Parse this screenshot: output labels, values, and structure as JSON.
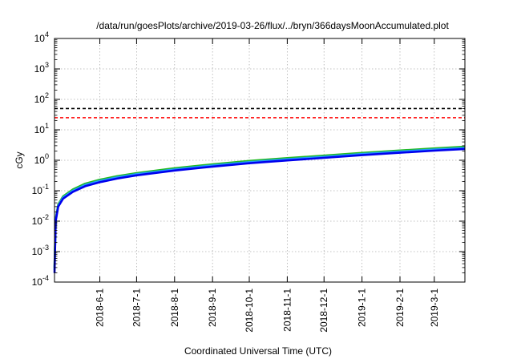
{
  "chart_data": {
    "type": "line",
    "title": "/data/run/goesPlots/archive/2019-03-26/flux/../bryn/366daysMoonAccumulated.plot",
    "xlabel": "Coordinated Universal Time (UTC)",
    "ylabel": "cGy",
    "yscale": "log",
    "ylim": [
      0.0001,
      10000
    ],
    "xlim": [
      "2018-04-25",
      "2019-03-26"
    ],
    "grid": true,
    "y_ticks": [
      {
        "value": 0.0001,
        "base": "10",
        "exp": "-4"
      },
      {
        "value": 0.001,
        "base": "10",
        "exp": "-3"
      },
      {
        "value": 0.01,
        "base": "10",
        "exp": "-2"
      },
      {
        "value": 0.1,
        "base": "10",
        "exp": "-1"
      },
      {
        "value": 1,
        "base": "10",
        "exp": "0"
      },
      {
        "value": 10,
        "base": "10",
        "exp": "1"
      },
      {
        "value": 100,
        "base": "10",
        "exp": "2"
      },
      {
        "value": 1000,
        "base": "10",
        "exp": "3"
      },
      {
        "value": 10000,
        "base": "10",
        "exp": "4"
      }
    ],
    "x_ticks": [
      {
        "date": "2018-06-01",
        "label": "2018-6-1"
      },
      {
        "date": "2018-07-01",
        "label": "2018-7-1"
      },
      {
        "date": "2018-08-01",
        "label": "2018-8-1"
      },
      {
        "date": "2018-09-01",
        "label": "2018-9-1"
      },
      {
        "date": "2018-10-01",
        "label": "2018-10-1"
      },
      {
        "date": "2018-11-01",
        "label": "2018-11-1"
      },
      {
        "date": "2018-12-01",
        "label": "2018-12-1"
      },
      {
        "date": "2019-01-01",
        "label": "2019-1-1"
      },
      {
        "date": "2019-02-01",
        "label": "2019-2-1"
      },
      {
        "date": "2019-03-01",
        "label": "2019-3-1"
      }
    ],
    "reference_lines": [
      {
        "value": 50,
        "color": "#000000",
        "style": "dashed"
      },
      {
        "value": 25,
        "color": "#ff0000",
        "style": "dashed"
      }
    ],
    "series": [
      {
        "color": "#22bb22",
        "points": [
          [
            "2018-04-25",
            0.0003
          ],
          [
            "2018-04-26",
            0.012
          ],
          [
            "2018-04-28",
            0.035
          ],
          [
            "2018-05-02",
            0.065
          ],
          [
            "2018-05-10",
            0.11
          ],
          [
            "2018-05-20",
            0.17
          ],
          [
            "2018-06-01",
            0.23
          ],
          [
            "2018-06-15",
            0.3
          ],
          [
            "2018-07-01",
            0.38
          ],
          [
            "2018-08-01",
            0.55
          ],
          [
            "2018-09-01",
            0.74
          ],
          [
            "2018-10-01",
            0.95
          ],
          [
            "2018-11-01",
            1.18
          ],
          [
            "2018-12-01",
            1.42
          ],
          [
            "2019-01-01",
            1.75
          ],
          [
            "2019-02-01",
            2.1
          ],
          [
            "2019-03-01",
            2.45
          ],
          [
            "2019-03-26",
            2.8
          ]
        ]
      },
      {
        "color": "#2299ff",
        "points": [
          [
            "2018-04-25",
            0.00025
          ],
          [
            "2018-04-26",
            0.011
          ],
          [
            "2018-04-28",
            0.032
          ],
          [
            "2018-05-02",
            0.06
          ],
          [
            "2018-05-10",
            0.1
          ],
          [
            "2018-05-20",
            0.155
          ],
          [
            "2018-06-01",
            0.21
          ],
          [
            "2018-06-15",
            0.275
          ],
          [
            "2018-07-01",
            0.35
          ],
          [
            "2018-08-01",
            0.5
          ],
          [
            "2018-09-01",
            0.68
          ],
          [
            "2018-10-01",
            0.87
          ],
          [
            "2018-11-01",
            1.08
          ],
          [
            "2018-12-01",
            1.3
          ],
          [
            "2019-01-01",
            1.6
          ],
          [
            "2019-02-01",
            1.93
          ],
          [
            "2019-03-01",
            2.25
          ],
          [
            "2019-03-26",
            2.55
          ]
        ]
      },
      {
        "color": "#0000ee",
        "points": [
          [
            "2018-04-25",
            0.0002
          ],
          [
            "2018-04-26",
            0.01
          ],
          [
            "2018-04-28",
            0.03
          ],
          [
            "2018-05-02",
            0.055
          ],
          [
            "2018-05-10",
            0.092
          ],
          [
            "2018-05-20",
            0.14
          ],
          [
            "2018-06-01",
            0.19
          ],
          [
            "2018-06-15",
            0.25
          ],
          [
            "2018-07-01",
            0.32
          ],
          [
            "2018-08-01",
            0.46
          ],
          [
            "2018-09-01",
            0.62
          ],
          [
            "2018-10-01",
            0.8
          ],
          [
            "2018-11-01",
            0.99
          ],
          [
            "2018-12-01",
            1.2
          ],
          [
            "2019-01-01",
            1.47
          ],
          [
            "2019-02-01",
            1.77
          ],
          [
            "2019-03-01",
            2.07
          ],
          [
            "2019-03-26",
            2.35
          ]
        ]
      }
    ]
  }
}
